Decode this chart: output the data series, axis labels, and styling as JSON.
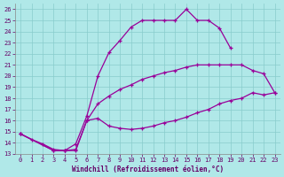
{
  "xlabel": "Windchill (Refroidissement éolien,°C)",
  "bg_color": "#b0e8e8",
  "line_color": "#990099",
  "xlim": [
    -0.5,
    23.5
  ],
  "ylim": [
    13,
    26.5
  ],
  "xticks": [
    0,
    1,
    2,
    3,
    4,
    5,
    6,
    7,
    8,
    9,
    10,
    11,
    12,
    13,
    14,
    15,
    16,
    17,
    18,
    19,
    20,
    21,
    22,
    23
  ],
  "yticks": [
    13,
    14,
    15,
    16,
    17,
    18,
    19,
    20,
    21,
    22,
    23,
    24,
    25,
    26
  ],
  "curve1_x": [
    0,
    1,
    2,
    3,
    4,
    5,
    6,
    7,
    8,
    9,
    10,
    11,
    12,
    13,
    14,
    15,
    16,
    17,
    18,
    19
  ],
  "curve1_y": [
    14.8,
    14.3,
    13.9,
    13.4,
    13.3,
    13.9,
    16.4,
    20.0,
    22.1,
    23.2,
    24.4,
    25.0,
    25.0,
    25.0,
    25.0,
    26.0,
    25.0,
    25.0,
    24.3,
    22.5
  ],
  "curve2_x": [
    0,
    3,
    4,
    5,
    6,
    7,
    8,
    9,
    10,
    11,
    12,
    13,
    14,
    15,
    16,
    17,
    18,
    19,
    20,
    21,
    22,
    23
  ],
  "curve2_y": [
    14.8,
    13.3,
    13.3,
    13.4,
    16.0,
    17.5,
    18.2,
    18.8,
    19.2,
    19.7,
    20.0,
    20.3,
    20.5,
    20.8,
    21.0,
    21.0,
    21.0,
    21.0,
    21.0,
    20.5,
    20.2,
    18.5
  ],
  "curve3_x": [
    0,
    3,
    4,
    5,
    6,
    7,
    8,
    9,
    10,
    11,
    12,
    13,
    14,
    15,
    16,
    17,
    18,
    19,
    20,
    21,
    22,
    23
  ],
  "curve3_y": [
    14.8,
    13.3,
    13.3,
    13.3,
    16.0,
    16.2,
    15.5,
    15.3,
    15.2,
    15.3,
    15.5,
    15.8,
    16.0,
    16.3,
    16.7,
    17.0,
    17.5,
    17.8,
    18.0,
    18.5,
    18.3,
    18.5
  ]
}
